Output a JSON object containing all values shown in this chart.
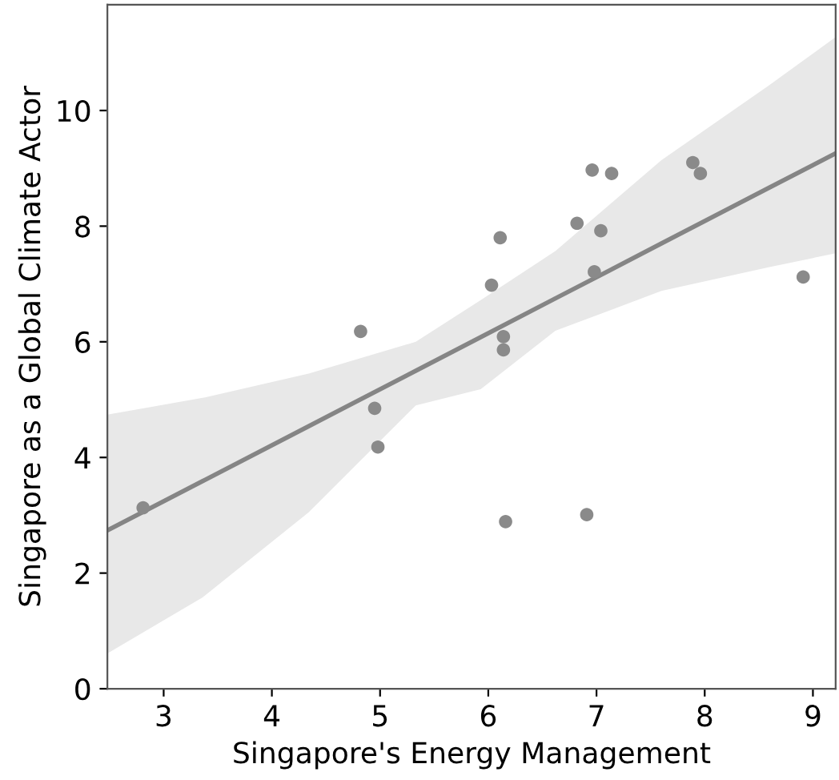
{
  "chart_data": {
    "type": "scatter",
    "xlabel": "Singapore's Energy Management",
    "ylabel": "Singapore as a Global Climate Actor",
    "xlim": [
      2.48,
      9.21
    ],
    "ylim": [
      0,
      11.83
    ],
    "xticks": [
      3,
      4,
      5,
      6,
      7,
      8,
      9
    ],
    "yticks": [
      0,
      2,
      4,
      6,
      8,
      10
    ],
    "grid": false,
    "series": [
      {
        "marker": "circle",
        "color": "#8a8a8a",
        "x": [
          2.81,
          4.82,
          4.95,
          4.98,
          6.03,
          6.11,
          6.14,
          6.14,
          6.16,
          6.82,
          6.96,
          7.04,
          6.98,
          6.91,
          7.14,
          7.89,
          7.96,
          8.91
        ],
        "values": [
          3.13,
          6.18,
          4.85,
          4.18,
          6.98,
          7.8,
          6.09,
          5.86,
          2.89,
          8.05,
          8.97,
          7.92,
          7.21,
          3.01,
          8.91,
          9.1,
          8.91,
          7.12
        ]
      },
      {
        "type": "line",
        "color": "#858585",
        "line_style": "solid",
        "x": [
          2.48,
          3.36,
          4.34,
          5.33,
          5.93,
          6.62,
          7.6,
          8.59,
          9.21
        ],
        "values": [
          2.74,
          3.59,
          4.54,
          5.5,
          6.08,
          6.75,
          7.7,
          8.66,
          9.26
        ],
        "lower": [
          0.61,
          1.58,
          3.05,
          4.9,
          5.18,
          6.19,
          6.88,
          7.29,
          7.53
        ],
        "upper": [
          4.74,
          5.03,
          5.45,
          6.0,
          6.72,
          7.57,
          9.14,
          10.43,
          11.27
        ]
      }
    ]
  }
}
